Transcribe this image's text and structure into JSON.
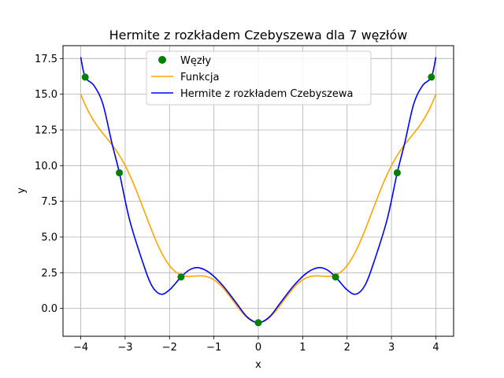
{
  "chart_data": {
    "type": "line",
    "title": "Hermite z rozkładem Czebyszewa dla 7 węzłów",
    "xlabel": "x",
    "ylabel": "y",
    "xlim": [
      -4.4,
      4.4
    ],
    "ylim": [
      -1.95,
      18.4
    ],
    "grid": true,
    "legend_position": "top-center",
    "xticks": [
      -4,
      -3,
      -2,
      -1,
      0,
      1,
      2,
      3,
      4
    ],
    "xtick_labels": [
      "−4",
      "−3",
      "−2",
      "−1",
      "0",
      "1",
      "2",
      "3",
      "4"
    ],
    "yticks": [
      0.0,
      2.5,
      5.0,
      7.5,
      10.0,
      12.5,
      15.0,
      17.5
    ],
    "ytick_labels": [
      "0.0",
      "2.5",
      "5.0",
      "7.5",
      "10.0",
      "12.5",
      "15.0",
      "17.5"
    ],
    "series": [
      {
        "name": "Węzły",
        "kind": "scatter",
        "color": "#008000",
        "points": [
          [
            -3.9,
            16.2
          ],
          [
            -3.13,
            9.5
          ],
          [
            -1.74,
            2.2
          ],
          [
            0.0,
            -1.0
          ],
          [
            1.74,
            2.2
          ],
          [
            3.13,
            9.5
          ],
          [
            3.9,
            16.2
          ]
        ]
      },
      {
        "name": "Funkcja",
        "kind": "line",
        "color": "#FFA500",
        "formula": "x^2 - cos(pi*x) on [-4, 4]"
      },
      {
        "name": "Hermite z rozkładem Czebyszewa",
        "kind": "line",
        "color": "#0000FF",
        "points": [
          [
            -4.0,
            17.6
          ],
          [
            -3.9,
            16.2
          ],
          [
            -3.7,
            15.6
          ],
          [
            -3.5,
            14.3
          ],
          [
            -3.3,
            11.6
          ],
          [
            -3.13,
            9.5
          ],
          [
            -2.9,
            6.2
          ],
          [
            -2.6,
            3.2
          ],
          [
            -2.4,
            1.6
          ],
          [
            -2.2,
            1.0
          ],
          [
            -2.0,
            1.3
          ],
          [
            -1.74,
            2.2
          ],
          [
            -1.55,
            2.7
          ],
          [
            -1.35,
            2.85
          ],
          [
            -1.1,
            2.5
          ],
          [
            -0.8,
            1.6
          ],
          [
            -0.5,
            0.4
          ],
          [
            -0.25,
            -0.6
          ],
          [
            0.0,
            -1.0
          ],
          [
            0.25,
            -0.6
          ],
          [
            0.5,
            0.4
          ],
          [
            0.8,
            1.6
          ],
          [
            1.1,
            2.5
          ],
          [
            1.35,
            2.85
          ],
          [
            1.55,
            2.7
          ],
          [
            1.74,
            2.2
          ],
          [
            2.0,
            1.3
          ],
          [
            2.2,
            1.0
          ],
          [
            2.4,
            1.6
          ],
          [
            2.6,
            3.2
          ],
          [
            2.9,
            6.2
          ],
          [
            3.13,
            9.5
          ],
          [
            3.3,
            11.6
          ],
          [
            3.5,
            14.3
          ],
          [
            3.7,
            15.6
          ],
          [
            3.9,
            16.2
          ],
          [
            4.0,
            17.6
          ]
        ]
      }
    ]
  }
}
